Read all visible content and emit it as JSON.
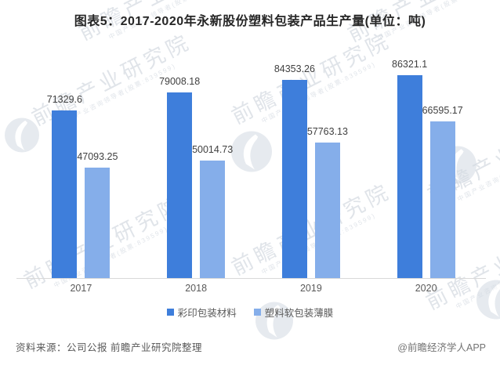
{
  "chart_data": {
    "type": "bar",
    "title": "图表5：2017-2020年永新股份塑料包装产品生产量(单位：吨)",
    "categories": [
      "2017",
      "2018",
      "2019",
      "2020"
    ],
    "series": [
      {
        "name": "彩印包装材料",
        "color": "#3e7edb",
        "values": [
          71329.6,
          79008.18,
          84353.26,
          86321.1
        ]
      },
      {
        "name": "塑料软包装薄膜",
        "color": "#85aeea",
        "values": [
          47093.25,
          50014.73,
          57763.13,
          66595.17
        ]
      }
    ],
    "value_labels_shown": true,
    "y_axis_visible": false,
    "grid": false,
    "legend_position": "bottom",
    "xlabel": "",
    "ylabel": "",
    "unit": "吨"
  },
  "footer": {
    "source": "资料来源：公司公报 前瞻产业研究院整理",
    "credit": "@前瞻经济学人APP"
  },
  "watermark": {
    "text": "前瞻产业研究院",
    "subtext": "中国产业咨询领导者(股票:839599)"
  },
  "colors": {
    "series1": "#3e7edb",
    "series2": "#85aeea",
    "axis_line": "#d9d9d9",
    "watermark": "#ccd3dc"
  }
}
